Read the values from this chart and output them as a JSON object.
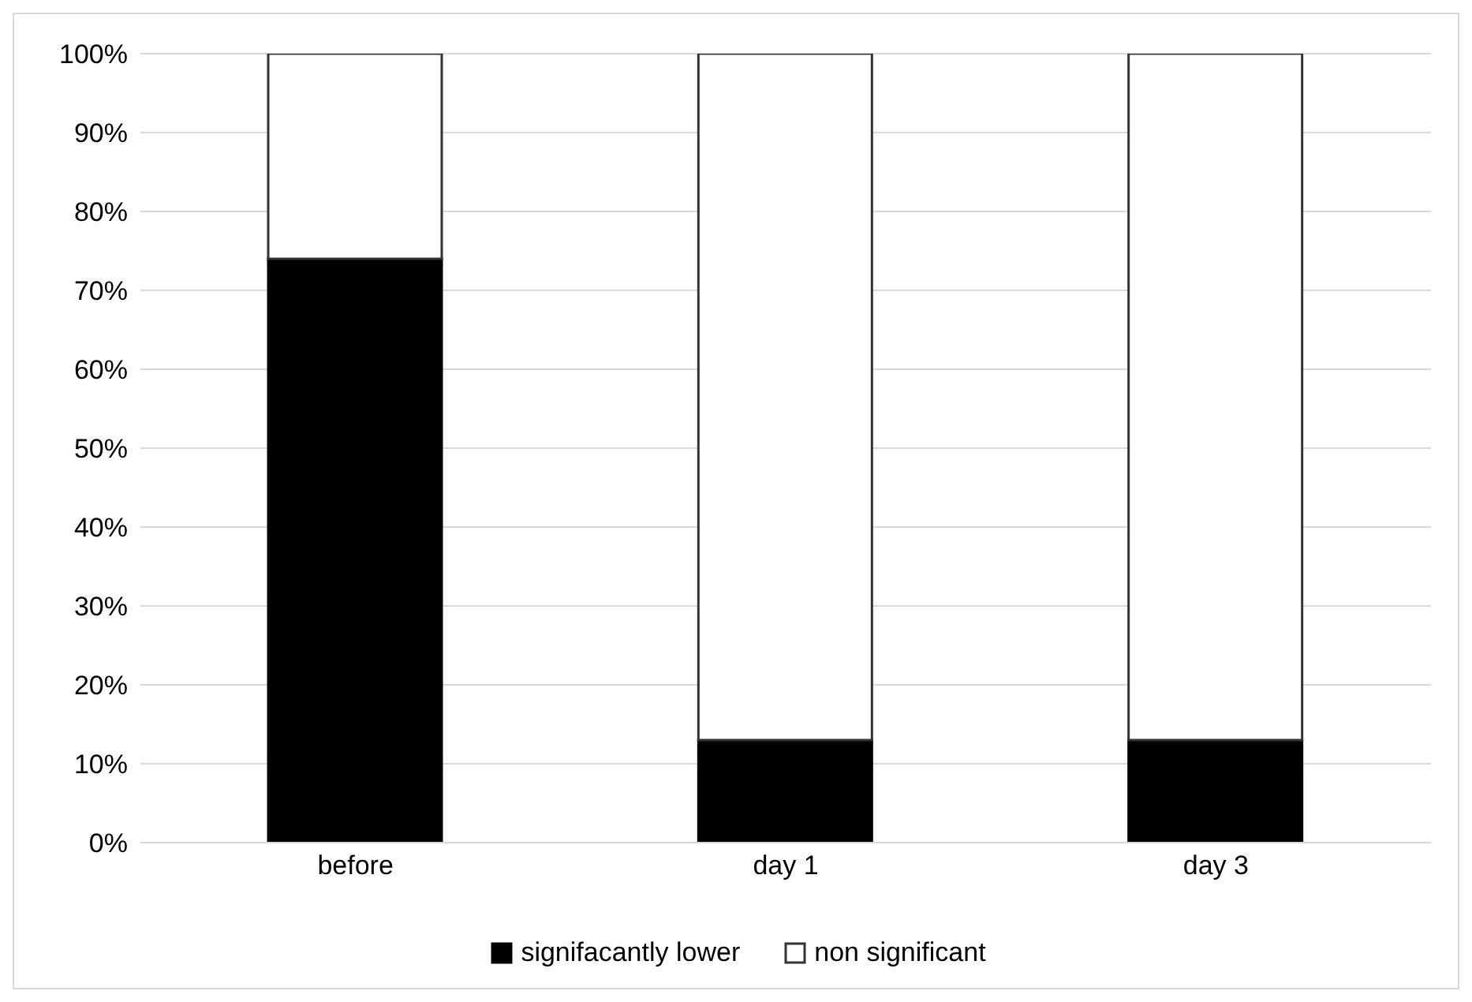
{
  "chart_data": {
    "type": "bar",
    "stacked": true,
    "categories": [
      "before",
      "day 1",
      "day 3"
    ],
    "series": [
      {
        "name": "signifacantly lower",
        "color": "#000000",
        "values": [
          74,
          13,
          13
        ]
      },
      {
        "name": "non significant",
        "color": "#ffffff",
        "values": [
          26,
          87,
          87
        ]
      }
    ],
    "ylim": [
      0,
      100
    ],
    "yticks": [
      {
        "value": 0,
        "label": "0%"
      },
      {
        "value": 10,
        "label": "10%"
      },
      {
        "value": 20,
        "label": "20%"
      },
      {
        "value": 30,
        "label": "30%"
      },
      {
        "value": 40,
        "label": "40%"
      },
      {
        "value": 50,
        "label": "50%"
      },
      {
        "value": 60,
        "label": "60%"
      },
      {
        "value": 70,
        "label": "70%"
      },
      {
        "value": 80,
        "label": "80%"
      },
      {
        "value": 90,
        "label": "90%"
      },
      {
        "value": 100,
        "label": "100%"
      }
    ],
    "grid": "y",
    "legend": "bottom"
  }
}
